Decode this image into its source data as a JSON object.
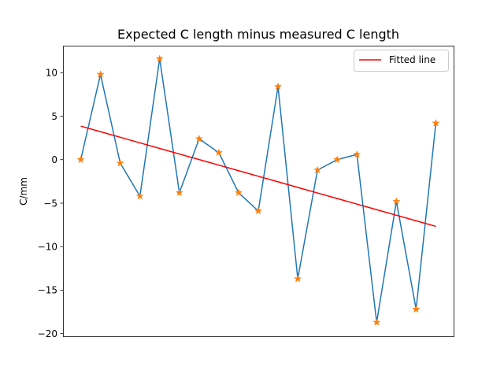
{
  "chart_data": {
    "type": "line",
    "title": "Expected C length minus measured C length",
    "xlabel": "",
    "ylabel": "C/mm",
    "x": [
      0,
      1,
      2,
      3,
      4,
      5,
      6,
      7,
      8,
      9,
      10,
      11,
      12,
      13,
      14,
      15,
      16,
      17,
      18
    ],
    "xlim": [
      -0.9,
      18.9
    ],
    "ylim": [
      -20.3,
      13.1
    ],
    "yticks": [
      10,
      5,
      0,
      -5,
      -10,
      -15,
      -20
    ],
    "ytick_labels": [
      "10",
      "5",
      "0",
      "−5",
      "−10",
      "−15",
      "−20"
    ],
    "grid": false,
    "legend_position": "top-right",
    "series": [
      {
        "color": "#1f77b4",
        "marker_color": "#ff7f0e",
        "marker": "star",
        "values": [
          0,
          9.8,
          -0.4,
          -4.2,
          11.6,
          -3.8,
          2.4,
          0.8,
          -3.8,
          -5.9,
          8.4,
          -13.7,
          -1.2,
          0,
          0.6,
          -18.7,
          -4.8,
          -17.2,
          4.2
        ]
      },
      {
        "name": "Fitted line",
        "color": "#ff0000",
        "values": [
          3.85,
          3.21,
          2.57,
          1.93,
          1.29,
          0.65,
          0.01,
          -0.63,
          -1.27,
          -1.91,
          -2.55,
          -3.19,
          -3.83,
          -4.47,
          -5.11,
          -5.75,
          -6.39,
          -7.03,
          -7.67
        ]
      }
    ]
  }
}
